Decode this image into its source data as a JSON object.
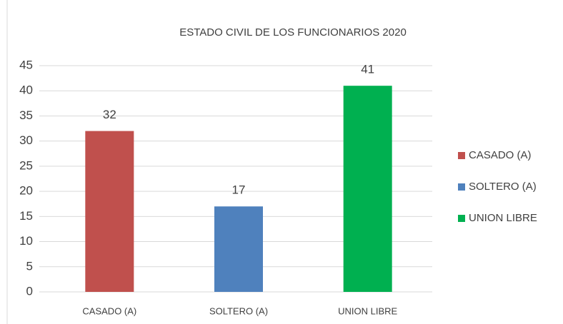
{
  "chart_data": {
    "type": "bar",
    "title": "ESTADO CIVIL DE LOS FUNCIONARIOS 2020",
    "categories": [
      "CASADO (A)",
      "SOLTERO (A)",
      "UNION LIBRE"
    ],
    "values": [
      32,
      17,
      41
    ],
    "colors": [
      "#c0504d",
      "#4f81bd",
      "#00b050"
    ],
    "ylim": [
      0,
      45
    ],
    "yticks": [
      0,
      5,
      10,
      15,
      20,
      25,
      30,
      35,
      40,
      45
    ],
    "grid": true,
    "legend": "right"
  }
}
